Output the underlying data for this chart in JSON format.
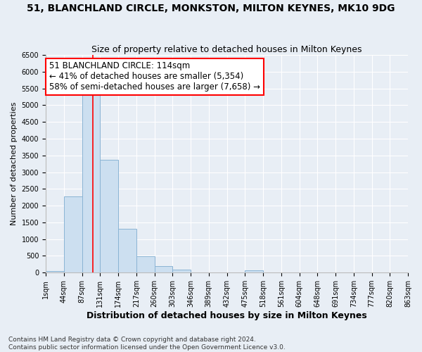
{
  "title": "51, BLANCHLAND CIRCLE, MONKSTON, MILTON KEYNES, MK10 9DG",
  "subtitle": "Size of property relative to detached houses in Milton Keynes",
  "xlabel": "Distribution of detached houses by size in Milton Keynes",
  "ylabel": "Number of detached properties",
  "bin_labels": [
    "1sqm",
    "44sqm",
    "87sqm",
    "131sqm",
    "174sqm",
    "217sqm",
    "260sqm",
    "303sqm",
    "346sqm",
    "389sqm",
    "432sqm",
    "475sqm",
    "518sqm",
    "561sqm",
    "604sqm",
    "648sqm",
    "691sqm",
    "734sqm",
    "777sqm",
    "820sqm",
    "863sqm"
  ],
  "bar_values": [
    50,
    2280,
    5430,
    3380,
    1310,
    480,
    185,
    80,
    0,
    0,
    0,
    60,
    0,
    0,
    0,
    0,
    0,
    0,
    0,
    0
  ],
  "bar_color": "#ccdff0",
  "bar_edge_color": "#8ab4d4",
  "property_line_bin_index": 2.62,
  "annotation_line1": "51 BLANCHLAND CIRCLE: 114sqm",
  "annotation_line2": "← 41% of detached houses are smaller (5,354)",
  "annotation_line3": "58% of semi-detached houses are larger (7,658) →",
  "annotation_box_color": "white",
  "annotation_box_edge_color": "red",
  "ylim": [
    0,
    6500
  ],
  "yticks": [
    0,
    500,
    1000,
    1500,
    2000,
    2500,
    3000,
    3500,
    4000,
    4500,
    5000,
    5500,
    6000,
    6500
  ],
  "footer_text": "Contains HM Land Registry data © Crown copyright and database right 2024.\nContains public sector information licensed under the Open Government Licence v3.0.",
  "bg_color": "#e8eef5",
  "plot_bg_color": "#e8eef5",
  "grid_color": "white",
  "title_fontsize": 10,
  "subtitle_fontsize": 9,
  "xlabel_fontsize": 9,
  "ylabel_fontsize": 8,
  "tick_fontsize": 7,
  "annotation_fontsize": 8.5,
  "footer_fontsize": 6.5
}
